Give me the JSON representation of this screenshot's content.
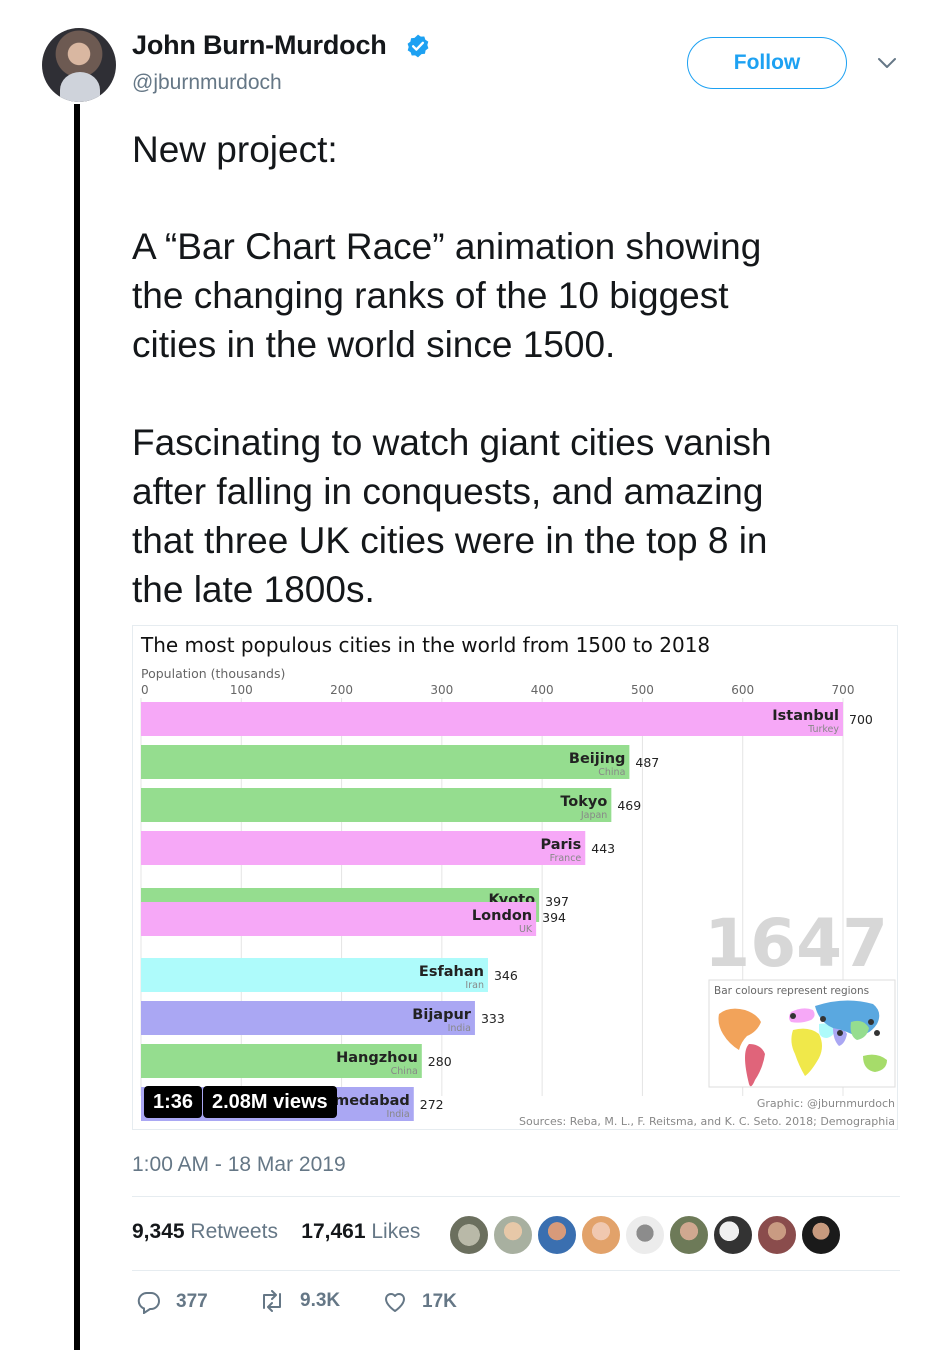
{
  "header": {
    "display_name": "John Burn-Murdoch",
    "handle": "@jburnmurdoch",
    "follow_label": "Follow"
  },
  "tweet": {
    "lines": [
      "New project:",
      "A “Bar Chart Race” animation showing",
      "the changing ranks of the 10 biggest",
      "cities in the world since 1500.",
      "Fascinating to watch giant cities vanish",
      "after falling in conquests, and amazing",
      "that three UK cities were in the top 8 in",
      "the late 1800s."
    ]
  },
  "video": {
    "duration": "1:36",
    "views": "2.08M views"
  },
  "chart_data": {
    "type": "bar",
    "title": "The most populous cities in the world from 1500 to 2018",
    "axis_label": "Population (thousands)",
    "ticks": [
      0,
      100,
      200,
      300,
      400,
      500,
      600,
      700
    ],
    "xlim": [
      0,
      700
    ],
    "year": "1647",
    "legend_note": "Bar colours represent regions",
    "credit": "Graphic: @jburnmurdoch",
    "sources": "Sources: Reba, M. L., F. Reitsma, and K. C. Seto. 2018; Demographia",
    "bars": [
      {
        "city": "Istanbul",
        "country": "Turkey",
        "value": 700,
        "color": "#f6a8f7"
      },
      {
        "city": "Beijing",
        "country": "China",
        "value": 487,
        "color": "#95dd8f"
      },
      {
        "city": "Tokyo",
        "country": "Japan",
        "value": 469,
        "color": "#95dd8f"
      },
      {
        "city": "Paris",
        "country": "France",
        "value": 443,
        "color": "#f6a8f7"
      },
      {
        "city": "Kyoto",
        "country": "",
        "value": 397,
        "color": "#95dd8f"
      },
      {
        "city": "London",
        "country": "UK",
        "value": 394,
        "color": "#f6a8f7"
      },
      {
        "city": "Esfahan",
        "country": "Iran",
        "value": 346,
        "color": "#aefbfb"
      },
      {
        "city": "Bijapur",
        "country": "India",
        "value": 333,
        "color": "#aaa7f3"
      },
      {
        "city": "Hangzhou",
        "country": "China",
        "value": 280,
        "color": "#95dd8f"
      },
      {
        "city": "Ahmedabad",
        "country": "India",
        "value": 272,
        "color": "#aaa7f3"
      }
    ]
  },
  "footer": {
    "date": "1:00 AM - 18 Mar 2019",
    "retweets_count": "9,345",
    "retweets_label": "Retweets",
    "likes_count": "17,461",
    "likes_label": "Likes",
    "reply_count": "377",
    "retweet_count_short": "9.3K",
    "like_count_short": "17K"
  },
  "colors": {
    "accent": "#1da1f2",
    "muted": "#657786"
  }
}
